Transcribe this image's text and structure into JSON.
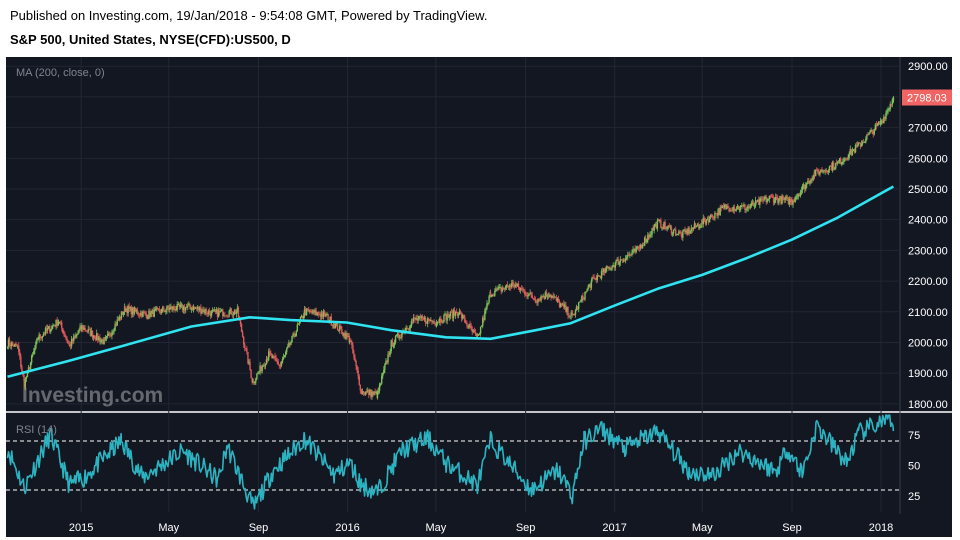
{
  "header": {
    "published": "Published on Investing.com, 19/Jan/2018 - 9:54:08 GMT, Powered by TradingView.",
    "symbol": "S&P 500, United States, NYSE(CFD):US500, D"
  },
  "colors": {
    "background": "#131722",
    "candle_up": "#7ec25a",
    "candle_down": "#e15a5a",
    "ma_line": "#2fe3f0",
    "rsi_line": "#2cb3c1",
    "last_price_tag": "#f06464",
    "grid": "#222733",
    "axis_text": "#ffffff",
    "indicator_label": "#7f8490"
  },
  "watermark": "Investing.com",
  "chart_data": [
    {
      "type": "line",
      "panel": "price",
      "indicator_label": "MA (200, close, 0)",
      "y_ticks": [
        "2900.00",
        "2800.00",
        "2700.00",
        "2600.00",
        "2500.00",
        "2400.00",
        "2300.00",
        "2200.00",
        "2100.00",
        "2000.00",
        "1900.00",
        "1800.00"
      ],
      "ylim": [
        1780,
        2930
      ],
      "last_price_label": "2798.03",
      "x_ticks": [
        "2015",
        "May",
        "Sep",
        "2016",
        "May",
        "Sep",
        "2017",
        "May",
        "Sep",
        "2018"
      ],
      "x_tick_dates": [
        "2015-01-01",
        "2015-05-01",
        "2015-09-01",
        "2016-01-01",
        "2016-05-01",
        "2016-09-01",
        "2017-01-01",
        "2017-05-01",
        "2017-09-01",
        "2018-01-01"
      ],
      "xlim": [
        "2014-09-20",
        "2018-01-27"
      ],
      "series": [
        {
          "kind": "candlestick",
          "x": [
            "2014-09-22",
            "2014-10-06",
            "2014-10-15",
            "2014-11-03",
            "2014-12-01",
            "2014-12-16",
            "2015-01-02",
            "2015-02-02",
            "2015-03-02",
            "2015-04-01",
            "2015-05-01",
            "2015-06-01",
            "2015-07-01",
            "2015-08-03",
            "2015-08-24",
            "2015-09-15",
            "2015-10-01",
            "2015-11-03",
            "2015-12-01",
            "2016-01-04",
            "2016-01-20",
            "2016-02-11",
            "2016-03-01",
            "2016-04-01",
            "2016-05-02",
            "2016-06-01",
            "2016-06-27",
            "2016-07-15",
            "2016-08-15",
            "2016-09-15",
            "2016-10-03",
            "2016-11-04",
            "2016-12-01",
            "2017-01-03",
            "2017-02-01",
            "2017-03-01",
            "2017-04-03",
            "2017-05-01",
            "2017-06-01",
            "2017-07-03",
            "2017-08-01",
            "2017-09-01",
            "2017-10-02",
            "2017-11-01",
            "2017-12-01",
            "2018-01-02",
            "2018-01-18"
          ],
          "values": [
            2000,
            1985,
            1865,
            2015,
            2070,
            1990,
            2050,
            2000,
            2110,
            2090,
            2110,
            2115,
            2095,
            2100,
            1870,
            1960,
            1925,
            2100,
            2090,
            2010,
            1840,
            1830,
            1995,
            2075,
            2070,
            2100,
            2010,
            2160,
            2190,
            2140,
            2160,
            2085,
            2200,
            2260,
            2300,
            2390,
            2350,
            2390,
            2440,
            2440,
            2470,
            2460,
            2550,
            2580,
            2640,
            2720,
            2798
          ]
        },
        {
          "name": "MA (200, close, 0)",
          "x": [
            "2014-09-22",
            "2014-12-15",
            "2015-03-01",
            "2015-06-01",
            "2015-08-20",
            "2015-10-15",
            "2015-12-31",
            "2016-03-01",
            "2016-05-15",
            "2016-07-15",
            "2016-09-15",
            "2016-11-01",
            "2017-01-01",
            "2017-03-01",
            "2017-05-01",
            "2017-07-01",
            "2017-09-01",
            "2017-11-01",
            "2018-01-18"
          ],
          "values": [
            1888,
            1940,
            1990,
            2052,
            2082,
            2073,
            2065,
            2040,
            2017,
            2012,
            2040,
            2062,
            2120,
            2175,
            2220,
            2275,
            2335,
            2405,
            2508
          ]
        }
      ]
    },
    {
      "type": "line",
      "panel": "rsi",
      "indicator_label": "RSI (14)",
      "y_ticks": [
        "75",
        "50",
        "25"
      ],
      "ylim": [
        12,
        92
      ],
      "reference_lines": [
        70,
        30
      ],
      "series": [
        {
          "name": "RSI (14)",
          "x": [
            "2014-09-22",
            "2014-10-15",
            "2014-11-20",
            "2014-12-16",
            "2015-01-05",
            "2015-02-25",
            "2015-03-26",
            "2015-05-20",
            "2015-07-08",
            "2015-07-20",
            "2015-08-25",
            "2015-09-20",
            "2015-11-03",
            "2015-12-14",
            "2016-01-04",
            "2016-01-20",
            "2016-02-11",
            "2016-03-15",
            "2016-04-20",
            "2016-05-15",
            "2016-06-27",
            "2016-07-15",
            "2016-09-09",
            "2016-10-15",
            "2016-11-04",
            "2016-11-20",
            "2016-12-13",
            "2017-01-15",
            "2017-03-01",
            "2017-04-13",
            "2017-05-17",
            "2017-06-20",
            "2017-08-10",
            "2017-08-25",
            "2017-09-15",
            "2017-10-05",
            "2017-11-15",
            "2017-12-01",
            "2018-01-10",
            "2018-01-18"
          ],
          "values": [
            64,
            32,
            75,
            34,
            40,
            70,
            40,
            62,
            38,
            66,
            15,
            45,
            72,
            42,
            52,
            34,
            28,
            62,
            72,
            52,
            34,
            70,
            30,
            46,
            26,
            70,
            80,
            64,
            78,
            45,
            42,
            62,
            45,
            64,
            44,
            82,
            52,
            76,
            88,
            78
          ]
        }
      ]
    }
  ]
}
